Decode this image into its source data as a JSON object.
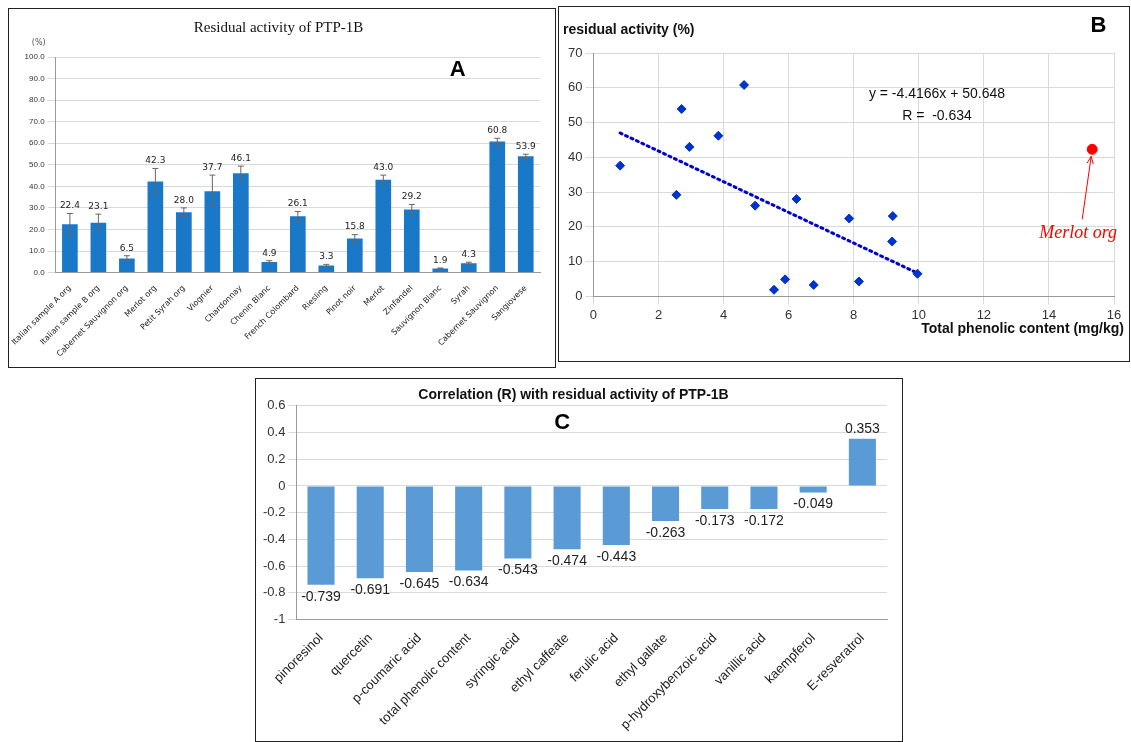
{
  "chart_data": [
    {
      "type": "bar",
      "title": "Residual activity of PTP-1B",
      "ylabel": "(%)",
      "categories": [
        "Italian sample A org",
        "Italian sample B org",
        "Cabernet Sauvignon org",
        "Merlot org",
        "Petit Syrah org",
        "Viognier",
        "Chardonnay",
        "Chenin Blanc",
        "French Colombard",
        "Riesling",
        "Pinot noir",
        "Merlot",
        "Zinfandel",
        "Sauvignon Blanc",
        "Syrah",
        "Cabernet Sauvignon",
        "Sangiovese"
      ],
      "values": [
        22.4,
        23.1,
        6.5,
        42.3,
        28.0,
        37.7,
        46.1,
        4.9,
        26.1,
        3.3,
        15.8,
        43.0,
        29.2,
        1.9,
        4.3,
        60.8,
        53.9
      ],
      "errors": [
        5,
        4,
        1.3,
        6,
        2,
        7.5,
        3.3,
        0.6,
        2.2,
        0.5,
        1.8,
        2.2,
        2.4,
        0.2,
        0.5,
        1.5,
        1
      ],
      "value_labels": [
        "22.4",
        "23.1",
        "6.5",
        "42.3",
        "28.0",
        "37.7",
        "46.1",
        "4.9",
        "26.1",
        "3.3",
        "15.8",
        "43.0",
        "29.2",
        "1.9",
        "4.3",
        "60.8",
        "53.9"
      ],
      "color": "#1a78c8",
      "ylim": [
        0,
        100
      ],
      "yticks": [
        {
          "value": 0,
          "label": "0.0"
        },
        {
          "value": 10,
          "label": "10.0"
        },
        {
          "value": 20,
          "label": "20.0"
        },
        {
          "value": 30,
          "label": "30.0"
        },
        {
          "value": 40,
          "label": "40.0"
        },
        {
          "value": 50,
          "label": "50.0"
        },
        {
          "value": 60,
          "label": "60.0"
        },
        {
          "value": 70,
          "label": "70.0"
        },
        {
          "value": 80,
          "label": "80.0"
        },
        {
          "value": 90,
          "label": "90.0"
        },
        {
          "value": 100,
          "label": "100.0"
        }
      ],
      "grid": "y",
      "annotations": [
        "A"
      ]
    },
    {
      "type": "scatter",
      "xlabel": "Total phenolic content (mg/kg)",
      "ylabel": "residual activity (%)",
      "series": [
        {
          "color": "#0033cc",
          "marker": "diamond",
          "x": [
            0.82,
            2.55,
            2.71,
            2.95,
            3.84,
            4.63,
            4.97,
            5.55,
            5.89,
            6.24,
            6.77,
            7.86,
            8.16,
            9.18,
            9.2,
            9.96
          ],
          "values": [
            37.6,
            29.2,
            53.9,
            43.0,
            46.2,
            60.8,
            26.1,
            1.9,
            4.9,
            28.0,
            3.3,
            22.4,
            4.3,
            15.8,
            23.1,
            6.5
          ]
        },
        {
          "type": "line",
          "color": "#0000cc",
          "marker": "none",
          "line_style": "dotted",
          "x": [
            0.82,
            9.96
          ],
          "values": [
            47.0,
            6.7
          ]
        },
        {
          "color": "#ff0000",
          "marker": "circle",
          "x": [
            15.33
          ],
          "values": [
            42.3
          ]
        }
      ],
      "xlim": [
        0,
        16
      ],
      "xticks": [
        0,
        2,
        4,
        6,
        8,
        10,
        12,
        14,
        16
      ],
      "ylim": [
        0,
        70
      ],
      "yticks": [
        0,
        10,
        20,
        30,
        40,
        50,
        60,
        70
      ],
      "grid": true,
      "annotations": [
        "y = -4.4166x + 50.648",
        "R =  -0.634",
        "B",
        {
          "text": "Merlot org",
          "x": 15.33,
          "y": 42.3
        }
      ]
    },
    {
      "type": "bar",
      "title": "Correlation (R) with residual activity of PTP-1B",
      "categories": [
        "pinoresinol",
        "quercetin",
        "p-coumaric acid",
        "total phenolic content",
        "syringic acid",
        "ethyl caffeate",
        "ferulic acid",
        "ethyl gallate",
        "p-hydroxybenzoic acid",
        "vanillic acid",
        "kaempferol",
        "E-resveratrol"
      ],
      "values": [
        -0.739,
        -0.691,
        -0.645,
        -0.634,
        -0.543,
        -0.474,
        -0.443,
        -0.263,
        -0.173,
        -0.172,
        -0.049,
        0.353
      ],
      "color": "#5b9bd5",
      "data_labels": true,
      "ylim": [
        -1,
        0.6
      ],
      "yticks": [
        -1,
        -0.8,
        -0.6,
        -0.4,
        -0.2,
        0,
        0.2,
        0.4,
        0.6
      ],
      "grid": "y",
      "annotations": [
        "C"
      ]
    }
  ]
}
